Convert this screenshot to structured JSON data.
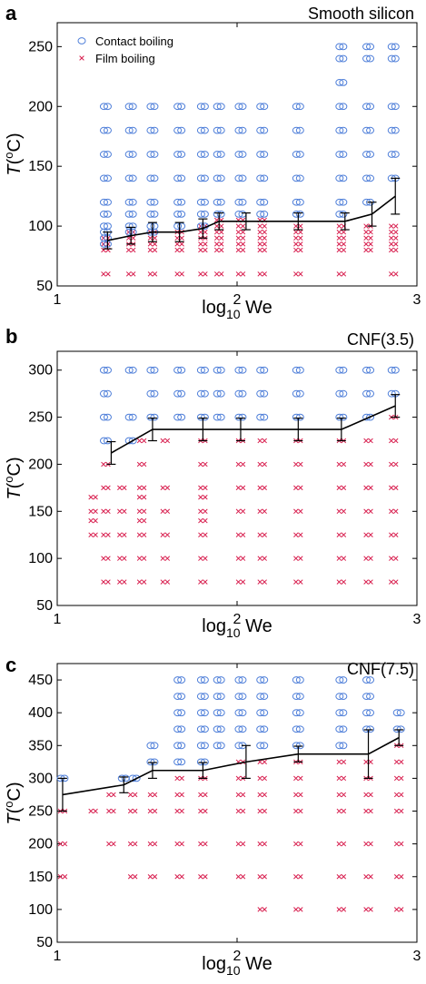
{
  "colors": {
    "contact": "#4f7fd9",
    "film": "#d81f4f",
    "line": "#000000"
  },
  "legend": {
    "contact": "Contact boiling",
    "film": "Film boiling"
  },
  "chart_data": [
    {
      "type": "scatter",
      "letter": "a",
      "title": "Smooth silicon",
      "xlabel_main": "log",
      "xlabel_sub": "10",
      "xlabel_rest": " We",
      "ylabel_T": "T",
      "ylabel_deg": "(",
      "ylabel_o": "o",
      "ylabel_C": "C)",
      "xlim": [
        1,
        3
      ],
      "ylim": [
        50,
        270
      ],
      "xticks": [
        1,
        2,
        3
      ],
      "xtick_labels": [
        "1",
        "2",
        "3"
      ],
      "yticks": [
        50,
        100,
        150,
        200,
        250
      ],
      "ytick_labels": [
        "50",
        "100",
        "150",
        "200",
        "250"
      ],
      "show_legend": true,
      "legend_position": "top-left",
      "contact_columns": [
        {
          "x": 1.27,
          "temps": [
            85,
            90,
            95,
            100,
            110,
            120,
            140,
            160,
            180,
            200
          ]
        },
        {
          "x": 1.41,
          "temps": [
            95,
            100,
            110,
            120,
            140,
            160,
            180,
            200
          ]
        },
        {
          "x": 1.53,
          "temps": [
            95,
            100,
            110,
            120,
            140,
            160,
            180,
            200
          ]
        },
        {
          "x": 1.68,
          "temps": [
            100,
            110,
            120,
            140,
            160,
            180,
            200
          ]
        },
        {
          "x": 1.81,
          "temps": [
            100,
            110,
            120,
            140,
            160,
            180,
            200
          ]
        },
        {
          "x": 1.9,
          "temps": [
            110,
            120,
            140,
            160,
            180,
            200
          ]
        },
        {
          "x": 2.02,
          "temps": [
            110,
            120,
            140,
            160,
            180,
            200
          ]
        },
        {
          "x": 2.14,
          "temps": [
            110,
            120,
            140,
            160,
            180,
            200
          ]
        },
        {
          "x": 2.34,
          "temps": [
            110,
            120,
            140,
            160,
            180,
            200
          ]
        },
        {
          "x": 2.58,
          "temps": [
            110,
            120,
            140,
            160,
            180,
            200,
            220,
            240,
            250
          ]
        },
        {
          "x": 2.73,
          "temps": [
            120,
            140,
            160,
            180,
            200,
            240,
            250
          ]
        },
        {
          "x": 2.87,
          "temps": [
            140,
            160,
            180,
            200,
            240,
            250
          ]
        }
      ],
      "film_columns": [
        {
          "x": 1.27,
          "temps": [
            60,
            80,
            85,
            90
          ]
        },
        {
          "x": 1.41,
          "temps": [
            60,
            80,
            85,
            90,
            95
          ]
        },
        {
          "x": 1.53,
          "temps": [
            60,
            80,
            85,
            90,
            95
          ]
        },
        {
          "x": 1.68,
          "temps": [
            60,
            80,
            85,
            90,
            95
          ]
        },
        {
          "x": 1.81,
          "temps": [
            60,
            80,
            85,
            90,
            95,
            100
          ]
        },
        {
          "x": 1.9,
          "temps": [
            60,
            80,
            85,
            90,
            95,
            100,
            105
          ]
        },
        {
          "x": 2.02,
          "temps": [
            60,
            80,
            85,
            90,
            95,
            100,
            105
          ]
        },
        {
          "x": 2.14,
          "temps": [
            60,
            80,
            85,
            90,
            95,
            100,
            105
          ]
        },
        {
          "x": 2.34,
          "temps": [
            60,
            80,
            85,
            90,
            95,
            100
          ]
        },
        {
          "x": 2.58,
          "temps": [
            60,
            80,
            85,
            90,
            95,
            100
          ]
        },
        {
          "x": 2.73,
          "temps": [
            80,
            85,
            90,
            95,
            100
          ]
        },
        {
          "x": 2.87,
          "temps": [
            60,
            80,
            85,
            90,
            95,
            100
          ]
        }
      ],
      "threshold": {
        "x": [
          1.28,
          1.41,
          1.53,
          1.68,
          1.81,
          1.9,
          2.05,
          2.34,
          2.6,
          2.75,
          2.88
        ],
        "y": [
          88,
          92,
          95,
          95,
          98,
          104,
          104,
          104,
          104,
          110,
          125
        ],
        "err": [
          7,
          7,
          8,
          8,
          8,
          7,
          7,
          7,
          7,
          10,
          15
        ]
      }
    },
    {
      "type": "scatter",
      "letter": "b",
      "title": "CNF(3.5)",
      "xlabel_main": "log",
      "xlabel_sub": "10",
      "xlabel_rest": " We",
      "ylabel_T": "T",
      "ylabel_deg": "(",
      "ylabel_o": "o",
      "ylabel_C": "C)",
      "xlim": [
        1,
        3
      ],
      "ylim": [
        50,
        320
      ],
      "xticks": [
        1,
        2,
        3
      ],
      "xtick_labels": [
        "1",
        "2",
        "3"
      ],
      "yticks": [
        50,
        100,
        150,
        200,
        250,
        300
      ],
      "ytick_labels": [
        "50",
        "100",
        "150",
        "200",
        "250",
        "300"
      ],
      "show_legend": false,
      "contact_columns": [
        {
          "x": 1.27,
          "temps": [
            225,
            250,
            275,
            300
          ]
        },
        {
          "x": 1.41,
          "temps": [
            225,
            250,
            300
          ]
        },
        {
          "x": 1.53,
          "temps": [
            250,
            275,
            300
          ]
        },
        {
          "x": 1.68,
          "temps": [
            250,
            275,
            300
          ]
        },
        {
          "x": 1.81,
          "temps": [
            250,
            275,
            300
          ]
        },
        {
          "x": 1.9,
          "temps": [
            250,
            275,
            300
          ]
        },
        {
          "x": 2.02,
          "temps": [
            250,
            275,
            300
          ]
        },
        {
          "x": 2.14,
          "temps": [
            250,
            275,
            300
          ]
        },
        {
          "x": 2.34,
          "temps": [
            250,
            275,
            300
          ]
        },
        {
          "x": 2.58,
          "temps": [
            250,
            275,
            300
          ]
        },
        {
          "x": 2.73,
          "temps": [
            250,
            275,
            300
          ]
        },
        {
          "x": 2.87,
          "temps": [
            275,
            300
          ]
        }
      ],
      "film_columns": [
        {
          "x": 1.2,
          "temps": [
            125,
            140,
            150,
            165
          ]
        },
        {
          "x": 1.27,
          "temps": [
            75,
            100,
            125,
            150,
            175,
            200
          ]
        },
        {
          "x": 1.36,
          "temps": [
            75,
            100,
            125,
            150,
            175
          ]
        },
        {
          "x": 1.47,
          "temps": [
            75,
            100,
            125,
            140,
            150,
            165,
            175,
            200,
            225
          ]
        },
        {
          "x": 1.6,
          "temps": [
            75,
            100,
            125,
            150,
            175,
            225
          ]
        },
        {
          "x": 1.81,
          "temps": [
            75,
            100,
            125,
            140,
            150,
            165,
            175,
            200,
            225
          ]
        },
        {
          "x": 2.02,
          "temps": [
            75,
            100,
            125,
            150,
            175,
            200,
            225
          ]
        },
        {
          "x": 2.14,
          "temps": [
            75,
            100,
            125,
            150,
            175,
            200,
            225
          ]
        },
        {
          "x": 2.34,
          "temps": [
            75,
            100,
            125,
            150,
            175,
            200,
            225
          ]
        },
        {
          "x": 2.58,
          "temps": [
            75,
            100,
            125,
            150,
            175,
            200,
            225
          ]
        },
        {
          "x": 2.73,
          "temps": [
            75,
            100,
            125,
            150,
            175,
            200,
            225
          ]
        },
        {
          "x": 2.87,
          "temps": [
            75,
            100,
            125,
            150,
            175,
            200,
            225,
            250
          ]
        }
      ],
      "threshold": {
        "x": [
          1.3,
          1.53,
          1.81,
          2.02,
          2.34,
          2.58,
          2.88
        ],
        "y": [
          212,
          237,
          237,
          237,
          237,
          237,
          262
        ],
        "err": [
          12,
          12,
          12,
          12,
          12,
          12,
          12
        ]
      }
    },
    {
      "type": "scatter",
      "letter": "c",
      "title": "CNF(7.5)",
      "xlabel_main": "log",
      "xlabel_sub": "10",
      "xlabel_rest": " We",
      "ylabel_T": "T",
      "ylabel_deg": "(",
      "ylabel_o": "o",
      "ylabel_C": "C)",
      "xlim": [
        1,
        3
      ],
      "ylim": [
        50,
        475
      ],
      "xticks": [
        1,
        2,
        3
      ],
      "xtick_labels": [
        "1",
        "2",
        "3"
      ],
      "yticks": [
        50,
        100,
        150,
        200,
        250,
        300,
        350,
        400,
        450
      ],
      "ytick_labels": [
        "50",
        "100",
        "150",
        "200",
        "250",
        "300",
        "350",
        "400",
        "450"
      ],
      "show_legend": false,
      "contact_columns": [
        {
          "x": 1.03,
          "temps": [
            300
          ]
        },
        {
          "x": 1.37,
          "temps": [
            300
          ]
        },
        {
          "x": 1.43,
          "temps": [
            300
          ]
        },
        {
          "x": 1.53,
          "temps": [
            325,
            350
          ]
        },
        {
          "x": 1.68,
          "temps": [
            325,
            350,
            375,
            400,
            425,
            450
          ]
        },
        {
          "x": 1.81,
          "temps": [
            325,
            350,
            375,
            400,
            425,
            450
          ]
        },
        {
          "x": 1.9,
          "temps": [
            350,
            375,
            400,
            425,
            450
          ]
        },
        {
          "x": 2.02,
          "temps": [
            350,
            375,
            400,
            425,
            450
          ]
        },
        {
          "x": 2.14,
          "temps": [
            350,
            375,
            400,
            425,
            450
          ]
        },
        {
          "x": 2.34,
          "temps": [
            350,
            375,
            400,
            425,
            450
          ]
        },
        {
          "x": 2.58,
          "temps": [
            350,
            375,
            400,
            425,
            450
          ]
        },
        {
          "x": 2.73,
          "temps": [
            375,
            400,
            425,
            450
          ]
        },
        {
          "x": 2.9,
          "temps": [
            375,
            400
          ]
        }
      ],
      "film_columns": [
        {
          "x": 1.03,
          "temps": [
            150,
            200,
            250
          ]
        },
        {
          "x": 1.2,
          "temps": [
            250
          ]
        },
        {
          "x": 1.3,
          "temps": [
            200,
            250,
            275
          ]
        },
        {
          "x": 1.42,
          "temps": [
            150,
            200,
            250,
            275
          ]
        },
        {
          "x": 1.53,
          "temps": [
            150,
            200,
            250,
            275
          ]
        },
        {
          "x": 1.68,
          "temps": [
            150,
            200,
            250,
            275,
            300
          ]
        },
        {
          "x": 1.81,
          "temps": [
            150,
            200,
            250,
            275,
            300
          ]
        },
        {
          "x": 2.02,
          "temps": [
            150,
            200,
            250,
            275,
            300,
            325
          ]
        },
        {
          "x": 2.14,
          "temps": [
            100,
            150,
            200,
            250,
            275,
            300,
            325
          ]
        },
        {
          "x": 2.34,
          "temps": [
            100,
            150,
            200,
            250,
            275,
            300,
            325
          ]
        },
        {
          "x": 2.58,
          "temps": [
            100,
            150,
            200,
            250,
            275,
            300,
            325
          ]
        },
        {
          "x": 2.73,
          "temps": [
            100,
            150,
            200,
            250,
            275,
            300,
            325
          ]
        },
        {
          "x": 2.9,
          "temps": [
            100,
            150,
            200,
            250,
            275,
            300,
            325,
            350
          ]
        }
      ],
      "threshold": {
        "x": [
          1.03,
          1.37,
          1.53,
          1.81,
          2.05,
          2.34,
          2.73,
          2.9
        ],
        "y": [
          275,
          290,
          312,
          312,
          325,
          337,
          337,
          362
        ],
        "err": [
          25,
          12,
          12,
          12,
          25,
          12,
          37,
          12
        ]
      }
    }
  ]
}
